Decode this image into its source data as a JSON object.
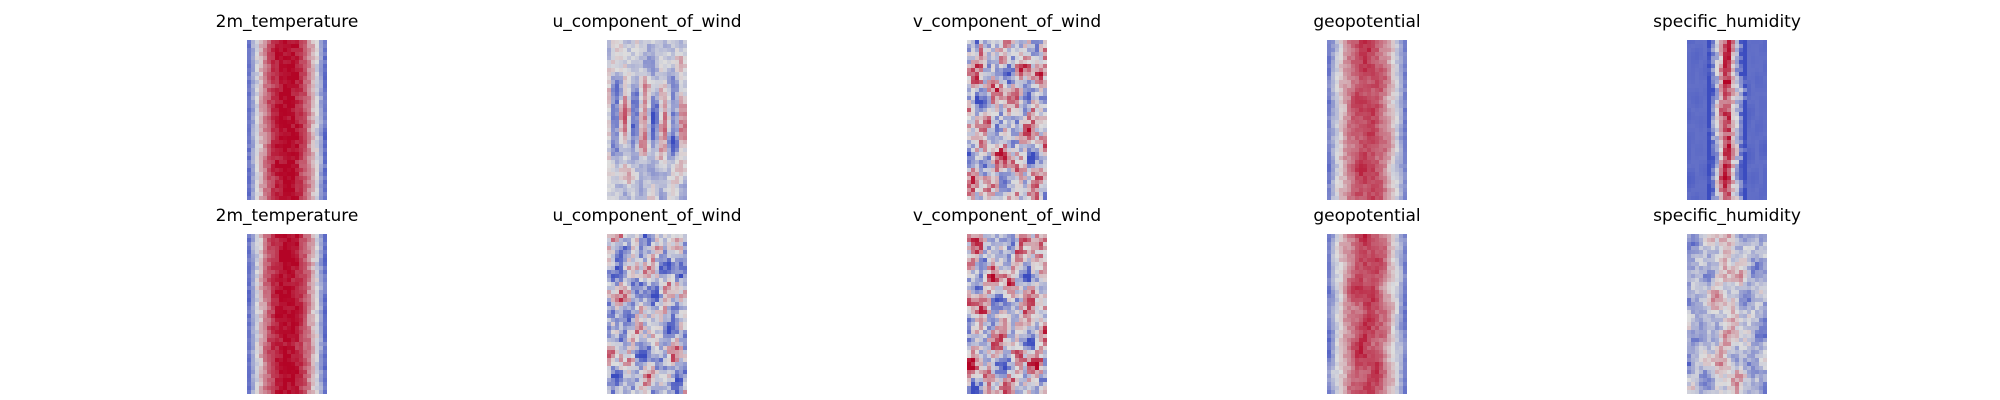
{
  "chart_data": {
    "type": "heatmap",
    "grid": "off",
    "colormap": "coolwarm",
    "colors": {
      "cold": "#3b4cc0",
      "neutral": "#dddddd",
      "warm": "#b40426"
    },
    "rows": [
      {
        "panels": [
          {
            "title": "2m_temperature",
            "pattern": "warm-band",
            "spread": 0.42,
            "mottling": 0.22
          },
          {
            "title": "u_component_of_wind",
            "pattern": "streaky",
            "spread": 0.42,
            "mottling": 0.62
          },
          {
            "title": "v_component_of_wind",
            "pattern": "noisy",
            "spread": 0.48,
            "mottling": 0.8
          },
          {
            "title": "geopotential",
            "pattern": "warm-band-soft",
            "spread": 0.45,
            "mottling": 0.3
          },
          {
            "title": "specific_humidity",
            "pattern": "thin-warm-core",
            "spread": 0.18,
            "mottling": 0.5
          }
        ]
      },
      {
        "panels": [
          {
            "title": "2m_temperature",
            "pattern": "warm-band",
            "spread": 0.42,
            "mottling": 0.28
          },
          {
            "title": "u_component_of_wind",
            "pattern": "noisy-cool",
            "spread": 0.4,
            "mottling": 0.72
          },
          {
            "title": "v_component_of_wind",
            "pattern": "noisy",
            "spread": 0.48,
            "mottling": 0.85
          },
          {
            "title": "geopotential",
            "pattern": "warm-band-soft",
            "spread": 0.45,
            "mottling": 0.42
          },
          {
            "title": "specific_humidity",
            "pattern": "cool-streaks",
            "spread": 0.22,
            "mottling": 0.55
          }
        ]
      }
    ]
  }
}
